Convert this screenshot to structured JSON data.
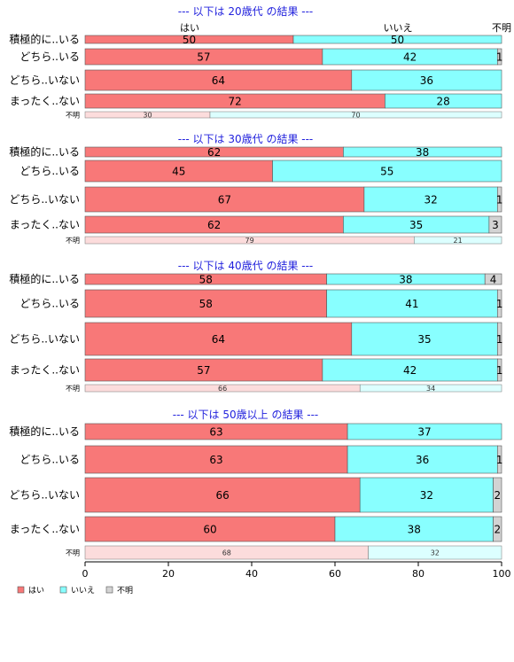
{
  "chart_data": {
    "type": "bar",
    "orientation": "horizontal",
    "stacked": true,
    "percent": true,
    "xlim": [
      0,
      100
    ],
    "xticks": [
      0,
      20,
      40,
      60,
      80,
      100
    ],
    "series_names": [
      "はい",
      "いいえ",
      "不明"
    ],
    "colors": {
      "yes": "#f87878",
      "no": "#88ffff",
      "unknown": "#d3d3d3",
      "yes_light": "#fcdcdc",
      "no_light": "#dcffff"
    },
    "top_labels": [
      "はい",
      "いいえ",
      "不明"
    ],
    "groups": [
      {
        "title": "--- 以下は 20歳代 の結果 ---",
        "rows": [
          {
            "label": "積極的に..いる",
            "values": [
              50,
              50,
              0
            ]
          },
          {
            "label": "どちら..いる",
            "values": [
              57,
              42,
              1
            ]
          },
          {
            "label": "どちら..いない",
            "values": [
              64,
              36,
              0
            ]
          },
          {
            "label": "まったく..ない",
            "values": [
              72,
              28,
              0
            ]
          }
        ],
        "unknown": {
          "label": "不明",
          "values": [
            30,
            70
          ]
        }
      },
      {
        "title": "--- 以下は 30歳代 の結果 ---",
        "rows": [
          {
            "label": "積極的に..いる",
            "values": [
              62,
              38,
              0
            ]
          },
          {
            "label": "どちら..いる",
            "values": [
              45,
              55,
              0
            ]
          },
          {
            "label": "どちら..いない",
            "values": [
              67,
              32,
              1
            ]
          },
          {
            "label": "まったく..ない",
            "values": [
              62,
              35,
              3
            ]
          }
        ],
        "unknown": {
          "label": "不明",
          "values": [
            79,
            21
          ]
        }
      },
      {
        "title": "--- 以下は 40歳代 の結果 ---",
        "rows": [
          {
            "label": "積極的に..いる",
            "values": [
              58,
              38,
              4
            ]
          },
          {
            "label": "どちら..いる",
            "values": [
              58,
              41,
              1
            ]
          },
          {
            "label": "どちら..いない",
            "values": [
              64,
              35,
              1
            ]
          },
          {
            "label": "まったく..ない",
            "values": [
              57,
              42,
              1
            ]
          }
        ],
        "unknown": {
          "label": "不明",
          "values": [
            66,
            34
          ]
        }
      },
      {
        "title": "--- 以下は 50歳以上 の結果 ---",
        "rows": [
          {
            "label": "積極的に..いる",
            "values": [
              63,
              37,
              0
            ]
          },
          {
            "label": "どちら..いる",
            "values": [
              63,
              36,
              1
            ]
          },
          {
            "label": "どちら..いない",
            "values": [
              66,
              32,
              2
            ]
          },
          {
            "label": "まったく..ない",
            "values": [
              60,
              38,
              2
            ]
          }
        ],
        "unknown": {
          "label": "不明",
          "values": [
            68,
            32
          ]
        }
      }
    ],
    "legend": {
      "position": "bottom-left",
      "items": [
        "はい",
        "いいえ",
        "不明"
      ]
    }
  }
}
